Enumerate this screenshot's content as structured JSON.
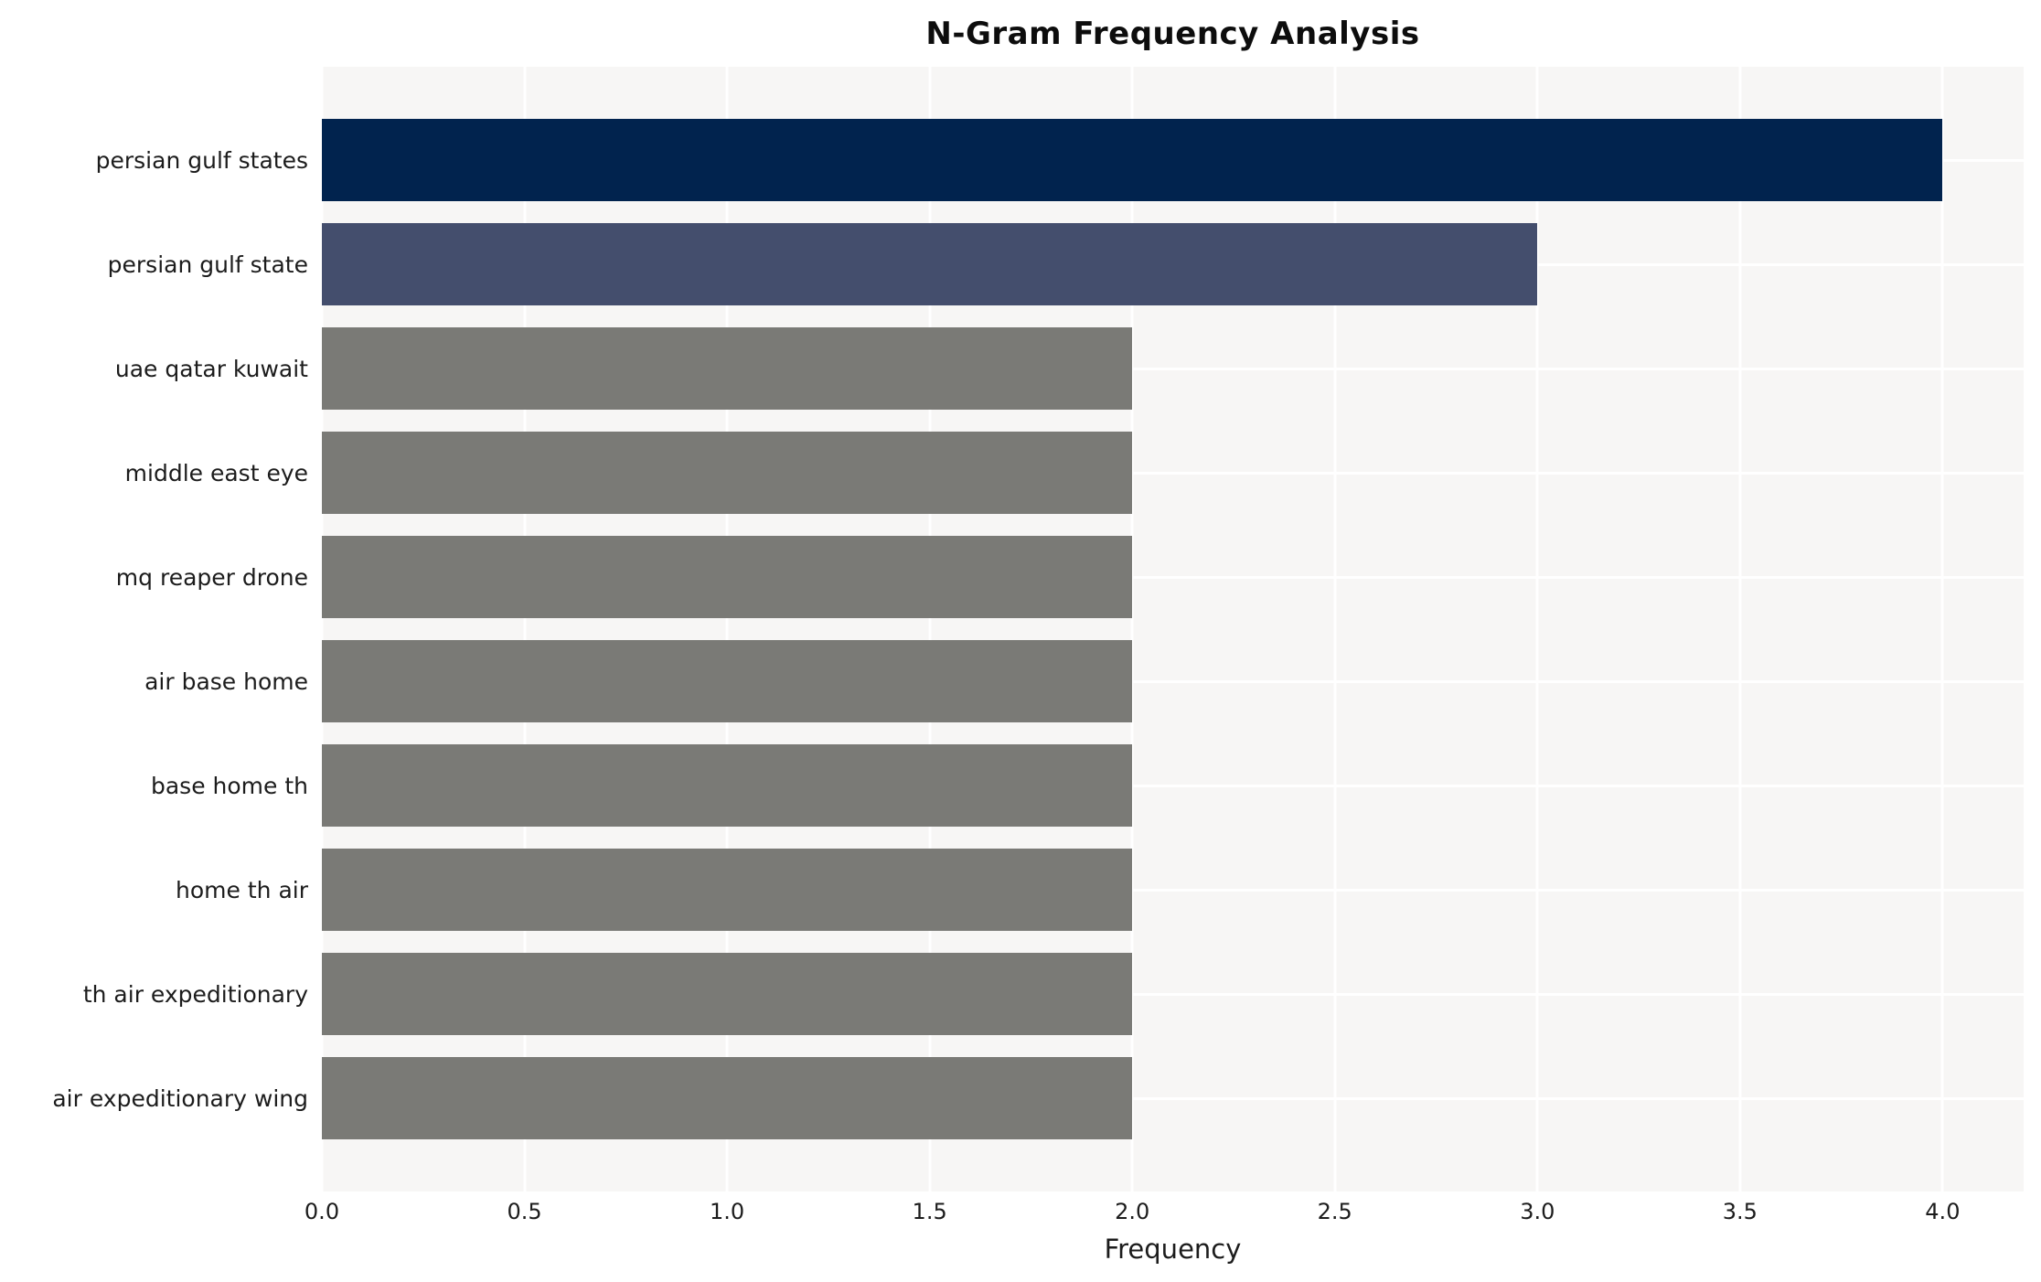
{
  "chart_data": {
    "type": "bar",
    "orientation": "horizontal",
    "title": "N-Gram Frequency Analysis",
    "xlabel": "Frequency",
    "ylabel": "",
    "categories": [
      "persian gulf states",
      "persian gulf state",
      "uae qatar kuwait",
      "middle east eye",
      "mq reaper drone",
      "air base home",
      "base home th",
      "home th air",
      "th air expeditionary",
      "air expeditionary wing"
    ],
    "values": [
      4,
      3,
      2,
      2,
      2,
      2,
      2,
      2,
      2,
      2
    ],
    "bar_colors": [
      "#01234e",
      "#444e6d",
      "#7a7a76",
      "#7a7a76",
      "#7a7a76",
      "#7a7a76",
      "#7a7a76",
      "#7a7a76",
      "#7a7a76",
      "#7a7a76"
    ],
    "xlim": [
      0,
      4.2
    ],
    "xticks": [
      0,
      0.5,
      1,
      1.5,
      2,
      2.5,
      3,
      3.5,
      4
    ],
    "xtick_labels": [
      "0.0",
      "0.5",
      "1.0",
      "1.5",
      "2.0",
      "2.5",
      "3.0",
      "3.5",
      "4.0"
    ],
    "grid": "white vertical gridlines at x ticks and horizontal gridlines at category centers, drawn behind bars",
    "legend": "none",
    "colors": {
      "plot_background": "#f7f6f5",
      "figure_background": "#ffffff",
      "gridline": "#ffffff",
      "text": "#1c1c1c"
    }
  }
}
